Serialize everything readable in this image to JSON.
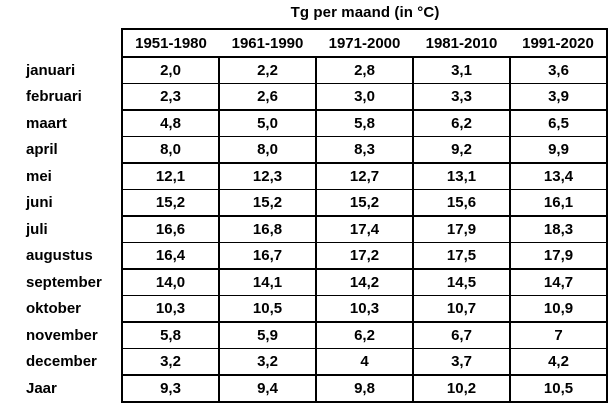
{
  "chart_data": {
    "type": "table",
    "title": "Tg per maand (in °C)",
    "column_headers": [
      "1951-1980",
      "1961-1990",
      "1971-2000",
      "1981-2010",
      "1991-2020"
    ],
    "rows": [
      {
        "label": "januari",
        "values": [
          "2,0",
          "2,2",
          "2,8",
          "3,1",
          "3,6"
        ]
      },
      {
        "label": "februari",
        "values": [
          "2,3",
          "2,6",
          "3,0",
          "3,3",
          "3,9"
        ]
      },
      {
        "label": "maart",
        "values": [
          "4,8",
          "5,0",
          "5,8",
          "6,2",
          "6,5"
        ]
      },
      {
        "label": "april",
        "values": [
          "8,0",
          "8,0",
          "8,3",
          "9,2",
          "9,9"
        ]
      },
      {
        "label": "mei",
        "values": [
          "12,1",
          "12,3",
          "12,7",
          "13,1",
          "13,4"
        ]
      },
      {
        "label": "juni",
        "values": [
          "15,2",
          "15,2",
          "15,2",
          "15,6",
          "16,1"
        ]
      },
      {
        "label": "juli",
        "values": [
          "16,6",
          "16,8",
          "17,4",
          "17,9",
          "18,3"
        ]
      },
      {
        "label": "augustus",
        "values": [
          "16,4",
          "16,7",
          "17,2",
          "17,5",
          "17,9"
        ]
      },
      {
        "label": "september",
        "values": [
          "14,0",
          "14,1",
          "14,2",
          "14,5",
          "14,7"
        ]
      },
      {
        "label": "oktober",
        "values": [
          "10,3",
          "10,5",
          "10,3",
          "10,7",
          "10,9"
        ]
      },
      {
        "label": "november",
        "values": [
          "5,8",
          "5,9",
          "6,2",
          "6,7",
          "7"
        ]
      },
      {
        "label": "december",
        "values": [
          "3,2",
          "3,2",
          "4",
          "3,7",
          "4,2"
        ]
      },
      {
        "label": "Jaar",
        "values": [
          "9,3",
          "9,4",
          "9,8",
          "10,2",
          "10,5"
        ]
      }
    ]
  },
  "colors": {
    "background": "#ffffff",
    "text": "#000000",
    "border": "#000000"
  }
}
